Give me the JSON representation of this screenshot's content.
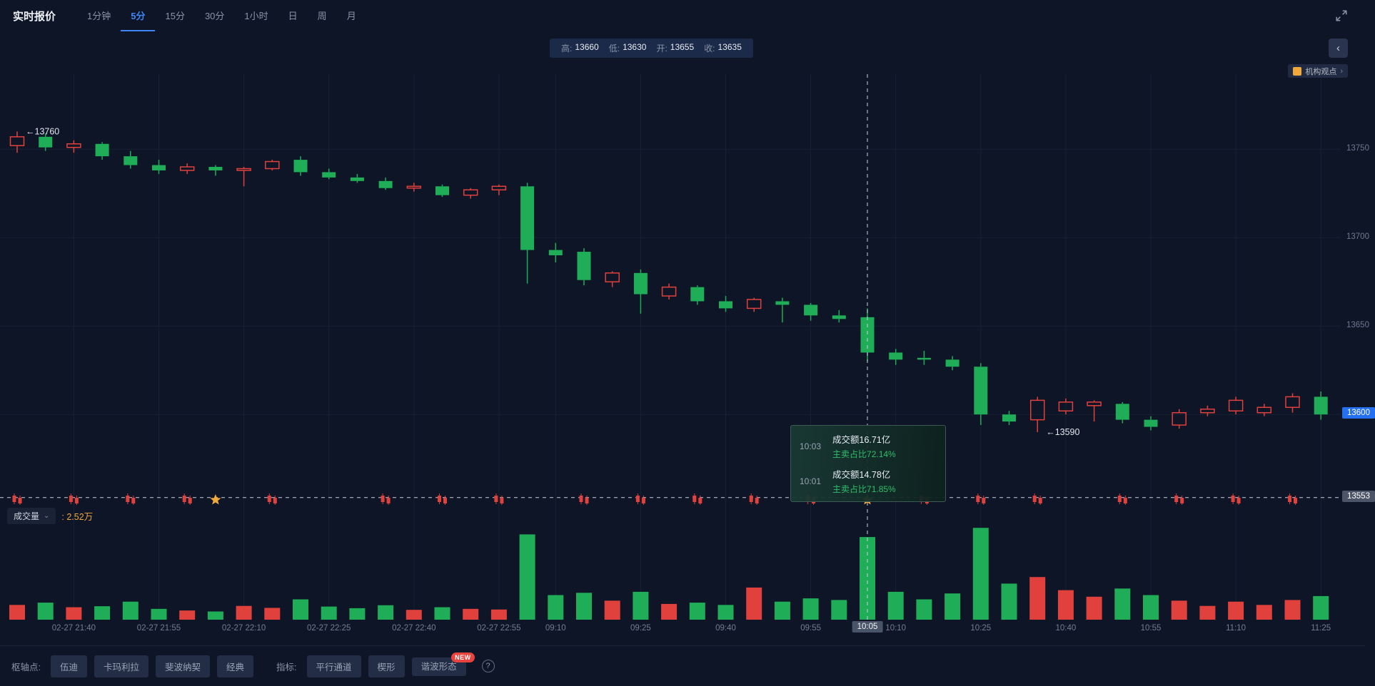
{
  "header": {
    "title": "实时报价",
    "tabs": [
      {
        "label": "1分钟",
        "active": false
      },
      {
        "label": "5分",
        "active": true
      },
      {
        "label": "15分",
        "active": false
      },
      {
        "label": "30分",
        "active": false
      },
      {
        "label": "1小时",
        "active": false
      },
      {
        "label": "日",
        "active": false
      },
      {
        "label": "周",
        "active": false
      },
      {
        "label": "月",
        "active": false
      }
    ]
  },
  "ohlc_bar": {
    "items": [
      {
        "label": "高:",
        "value": "13660"
      },
      {
        "label": "低:",
        "value": "13630"
      },
      {
        "label": "开:",
        "value": "13655"
      },
      {
        "label": "收:",
        "value": "13635"
      }
    ]
  },
  "top_right": {
    "collapse_chevron": "‹",
    "institution_label": "机构观点",
    "institution_chevron": "›"
  },
  "volume_header": {
    "label": "成交量",
    "value_text": ": 2.52万"
  },
  "tooltip": {
    "rows": [
      {
        "time": "10:03",
        "turnover": "成交额16.71亿",
        "ratio": "主卖占比72.14%"
      },
      {
        "time": "10:01",
        "turnover": "成交额14.78亿",
        "ratio": "主卖占比71.85%"
      }
    ]
  },
  "toolbar": {
    "pivot_label": "枢轴点:",
    "pivot_buttons": [
      "伍迪",
      "卡玛利拉",
      "斐波纳契",
      "经典"
    ],
    "indicator_label": "指标:",
    "indicator_buttons": [
      {
        "label": "平行通道",
        "badge": ""
      },
      {
        "label": "楔形",
        "badge": ""
      },
      {
        "label": "谐波形态",
        "badge": "NEW"
      }
    ],
    "new_badge": "NEW",
    "help_label": "?"
  },
  "chart_data": {
    "type": "candlestick",
    "interval": "5分",
    "colors": {
      "up": "#e0413c",
      "down": "#1fad57",
      "accent_blue": "#2570f0",
      "orange": "#f0a83c",
      "gold": "#f2a93b"
    },
    "price_axis": {
      "plain_ticks": [
        13750,
        13700,
        13650
      ],
      "grid_prices": [
        13750,
        13700,
        13650,
        13600
      ],
      "last_price": "13600",
      "high_marker": 13760,
      "low_marker": 13590
    },
    "crosshair": {
      "index": 30,
      "time": "10:05",
      "price": 13553,
      "price_label": "13553"
    },
    "annotations": [
      {
        "text": "←13760",
        "index": 0,
        "price": 13760
      },
      {
        "text": "←13590",
        "index": 36,
        "price": 13590
      }
    ],
    "columns": [
      "time",
      "open",
      "high",
      "low",
      "close",
      "volume_wan"
    ],
    "candles": [
      [
        "21:30",
        13752,
        13760,
        13748,
        13757,
        0.45
      ],
      [
        "21:35",
        13757,
        13759,
        13749,
        13751,
        0.52
      ],
      [
        "21:40",
        13751,
        13755,
        13748,
        13753,
        0.38
      ],
      [
        "21:45",
        13753,
        13754,
        13744,
        13746,
        0.41
      ],
      [
        "21:50",
        13746,
        13749,
        13739,
        13741,
        0.55
      ],
      [
        "21:55",
        13741,
        13744,
        13736,
        13738,
        0.33
      ],
      [
        "22:00",
        13738,
        13742,
        13736,
        13740,
        0.28
      ],
      [
        "22:05",
        13740,
        13741,
        13735,
        13738,
        0.25
      ],
      [
        "22:10",
        13738,
        13740,
        13729,
        13739,
        0.42
      ],
      [
        "22:15",
        13739,
        13744,
        13738,
        13743,
        0.36
      ],
      [
        "22:20",
        13744,
        13746,
        13735,
        13737,
        0.62
      ],
      [
        "22:25",
        13737,
        13739,
        13733,
        13734,
        0.4
      ],
      [
        "22:30",
        13734,
        13736,
        13731,
        13732,
        0.35
      ],
      [
        "22:35",
        13732,
        13734,
        13727,
        13728,
        0.44
      ],
      [
        "22:40",
        13728,
        13731,
        13726,
        13729,
        0.3
      ],
      [
        "22:45",
        13729,
        13730,
        13723,
        13724,
        0.38
      ],
      [
        "22:50",
        13724,
        13728,
        13722,
        13727,
        0.33
      ],
      [
        "22:55",
        13727,
        13730,
        13724,
        13729,
        0.31
      ],
      [
        "09:05",
        13729,
        13731,
        13674,
        13693,
        2.6
      ],
      [
        "09:10",
        13693,
        13697,
        13686,
        13690,
        0.75
      ],
      [
        "09:15",
        13692,
        13694,
        13673,
        13676,
        0.82
      ],
      [
        "09:20",
        13675,
        13681,
        13672,
        13680,
        0.58
      ],
      [
        "09:25",
        13680,
        13682,
        13657,
        13668,
        0.85
      ],
      [
        "09:30",
        13667,
        13674,
        13665,
        13672,
        0.48
      ],
      [
        "09:35",
        13672,
        13673,
        13662,
        13664,
        0.52
      ],
      [
        "09:40",
        13664,
        13667,
        13658,
        13660,
        0.45
      ],
      [
        "09:45",
        13660,
        13666,
        13658,
        13665,
        0.98
      ],
      [
        "09:50",
        13664,
        13666,
        13652,
        13662,
        0.55
      ],
      [
        "09:55",
        13662,
        13663,
        13653,
        13656,
        0.65
      ],
      [
        "10:00",
        13656,
        13659,
        13652,
        13654,
        0.6
      ],
      [
        "10:05",
        13655,
        13660,
        13630,
        13635,
        2.52
      ],
      [
        "10:10",
        13635,
        13637,
        13628,
        13631,
        0.85
      ],
      [
        "10:15",
        13632,
        13636,
        13628,
        13631,
        0.62
      ],
      [
        "10:20",
        13631,
        13633,
        13625,
        13627,
        0.8
      ],
      [
        "10:25",
        13627,
        13629,
        13594,
        13600,
        2.8
      ],
      [
        "10:30",
        13600,
        13602,
        13594,
        13596,
        1.1
      ],
      [
        "10:35",
        13597,
        13610,
        13590,
        13608,
        1.3
      ],
      [
        "10:40",
        13602,
        13609,
        13600,
        13607,
        0.9
      ],
      [
        "10:45",
        13605,
        13608,
        13596,
        13607,
        0.7
      ],
      [
        "10:50",
        13606,
        13607,
        13595,
        13597,
        0.95
      ],
      [
        "10:55",
        13597,
        13599,
        13591,
        13593,
        0.75
      ],
      [
        "11:00",
        13594,
        13603,
        13592,
        13601,
        0.58
      ],
      [
        "11:05",
        13601,
        13605,
        13599,
        13603,
        0.42
      ],
      [
        "11:10",
        13602,
        13610,
        13600,
        13608,
        0.55
      ],
      [
        "11:15",
        13601,
        13606,
        13599,
        13604,
        0.45
      ],
      [
        "11:20",
        13604,
        13612,
        13601,
        13610,
        0.6
      ],
      [
        "11:25",
        13610,
        13613,
        13597,
        13600,
        0.72
      ]
    ],
    "x_labels": [
      {
        "text": "02-27 21:40",
        "index": 2
      },
      {
        "text": "02-27 21:55",
        "index": 5
      },
      {
        "text": "02-27 22:10",
        "index": 8
      },
      {
        "text": "02-27 22:25",
        "index": 11
      },
      {
        "text": "02-27 22:40",
        "index": 14
      },
      {
        "text": "02-27 22:55",
        "index": 17
      },
      {
        "text": "09:10",
        "index": 19
      },
      {
        "text": "09:25",
        "index": 22
      },
      {
        "text": "09:40",
        "index": 25
      },
      {
        "text": "09:55",
        "index": 28
      },
      {
        "text": "10:10",
        "index": 31
      },
      {
        "text": "10:25",
        "index": 34
      },
      {
        "text": "10:40",
        "index": 37
      },
      {
        "text": "10:55",
        "index": 40
      },
      {
        "text": "11:10",
        "index": 43
      },
      {
        "text": "11:25",
        "index": 46
      }
    ],
    "markers": {
      "red_indices": [
        0,
        2,
        4,
        6,
        9,
        13,
        15,
        17,
        20,
        22,
        24,
        26,
        28,
        32,
        34,
        36,
        39,
        41,
        43,
        45
      ],
      "gold_indices": [
        7,
        30
      ]
    },
    "volume_current_wan": 2.52
  }
}
